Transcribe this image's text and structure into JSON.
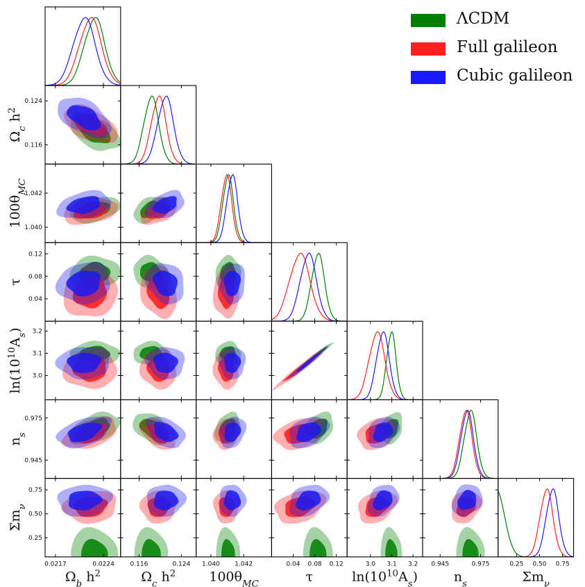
{
  "legend": [
    {
      "label": "ΛCDM",
      "color": "#008000"
    },
    {
      "label": "Full galileon",
      "color": "#ff2020"
    },
    {
      "label": "Cubic galileon",
      "color": "#1a1aff"
    }
  ],
  "colors": {
    "lcdm_fill": "#008000",
    "full_fill": "#ff1a1a",
    "cubic_fill": "#1a1aee"
  },
  "chart_data": {
    "type": "triangle",
    "parameters": [
      {
        "label": "Ωbh²",
        "tex": "Ω_b h^2",
        "range": [
          0.02155,
          0.02265
        ],
        "ticks": [
          0.0217,
          0.0224
        ],
        "tick_labels": [
          "0.0217",
          "0.0224"
        ]
      },
      {
        "label": "Ωch²",
        "tex": "Ω_c h^2",
        "range": [
          0.1125,
          0.1268
        ],
        "ticks": [
          0.116,
          0.124
        ],
        "tick_labels": [
          "0.116",
          "0.124"
        ]
      },
      {
        "label": "100θMC",
        "tex": "100θ_{MC}",
        "range": [
          1.0391,
          1.0437
        ],
        "ticks": [
          1.04,
          1.042
        ],
        "tick_labels": [
          "1.040",
          "1.042"
        ]
      },
      {
        "label": "τ",
        "tex": "τ",
        "range": [
          0.0,
          0.14
        ],
        "ticks": [
          0.04,
          0.08,
          0.12
        ],
        "tick_labels": [
          "0.04",
          "0.08",
          "0.12"
        ]
      },
      {
        "label": "ln(10¹⁰As)",
        "tex": "ln(10^{10}A_s)",
        "range": [
          2.89,
          3.245
        ],
        "ticks": [
          3.0,
          3.1,
          3.2
        ],
        "tick_labels": [
          "3.0",
          "3.1",
          "3.2"
        ]
      },
      {
        "label": "ns",
        "tex": "n_s",
        "range": [
          0.932,
          0.988
        ],
        "ticks": [
          0.945,
          0.975
        ],
        "tick_labels": [
          "0.945",
          "0.975"
        ]
      },
      {
        "label": "Σmν",
        "tex": "Σm_ν",
        "range": [
          0.05,
          0.87
        ],
        "ticks": [
          0.25,
          0.5,
          0.75
        ],
        "tick_labels": [
          "0.25",
          "0.50",
          "0.75"
        ]
      }
    ],
    "series": [
      {
        "name": "ΛCDM",
        "color": "#008000",
        "mean": [
          0.02227,
          0.1183,
          1.04105,
          0.086,
          3.098,
          0.9675,
          null
        ],
        "sd": [
          0.00015,
          0.0014,
          0.00032,
          0.012,
          0.022,
          0.0046,
          null
        ],
        "mnu_upper_limit_shape": true
      },
      {
        "name": "Full galileon",
        "color": "#ff2020",
        "mean": [
          0.02221,
          0.1197,
          1.04095,
          0.052,
          3.03,
          0.964,
          0.575
        ],
        "sd": [
          0.00016,
          0.0014,
          0.00032,
          0.019,
          0.037,
          0.0046,
          0.07
        ]
      },
      {
        "name": "Cubic galileon",
        "color": "#1a1aff",
        "mean": [
          0.02212,
          0.121,
          1.0413,
          0.068,
          3.058,
          0.965,
          0.64
        ],
        "sd": [
          0.00016,
          0.0015,
          0.00033,
          0.015,
          0.03,
          0.0046,
          0.068
        ]
      }
    ],
    "correlations": {
      "0-1": -0.5,
      "0-2": 0.3,
      "0-3": 0.1,
      "0-4": 0.05,
      "0-5": 0.45,
      "0-6": 0.1,
      "1-2": 0.4,
      "1-3": -0.2,
      "1-4": -0.05,
      "1-5": -0.4,
      "1-6": 0.05,
      "2-3": 0.05,
      "2-4": 0.0,
      "2-5": 0.2,
      "2-6": 0.0,
      "3-4": 0.98,
      "3-5": 0.35,
      "3-6": 0.3,
      "4-5": 0.3,
      "4-6": 0.3,
      "5-6": 0.2
    },
    "grid": false,
    "legend_position": "top-right"
  }
}
